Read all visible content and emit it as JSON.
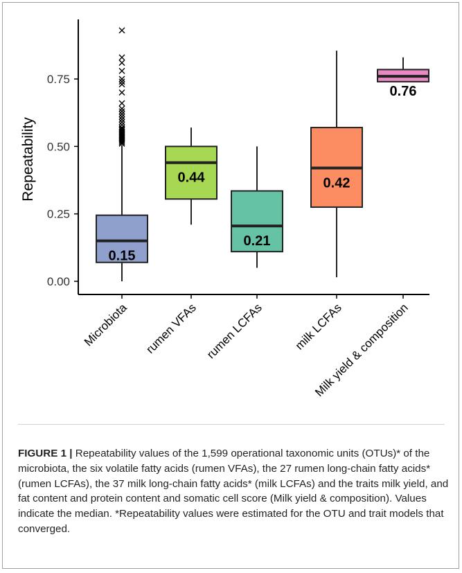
{
  "chart_data": {
    "type": "box",
    "ylabel": "Repeatability",
    "ylim": [
      0.0,
      0.95
    ],
    "yticks": [
      "0.00",
      "0.25",
      "0.50",
      "0.75"
    ],
    "ytick_values": [
      0.0,
      0.25,
      0.5,
      0.75
    ],
    "categories": [
      "Microbiota",
      "rumen VFAs",
      "rumen LCFAs",
      "milk LCFAs",
      "Milk yield & composition"
    ],
    "boxes": [
      {
        "category": "Microbiota",
        "whisker_low": 0.0,
        "q1": 0.07,
        "median": 0.15,
        "q3": 0.245,
        "whisker_high": 0.505,
        "color": "#8ea0cb",
        "label": "0.15",
        "outliers": [
          0.93,
          0.83,
          0.81,
          0.78,
          0.75,
          0.74,
          0.73,
          0.7,
          0.66,
          0.64,
          0.63,
          0.62,
          0.61,
          0.6,
          0.59,
          0.58,
          0.57,
          0.565,
          0.56,
          0.555,
          0.55,
          0.545,
          0.54,
          0.535,
          0.53,
          0.525,
          0.52,
          0.515,
          0.51
        ]
      },
      {
        "category": "rumen VFAs",
        "whisker_low": 0.21,
        "q1": 0.305,
        "median": 0.44,
        "q3": 0.5,
        "whisker_high": 0.57,
        "color": "#a6d853",
        "label": "0.44",
        "outliers": []
      },
      {
        "category": "rumen LCFAs",
        "whisker_low": 0.05,
        "q1": 0.11,
        "median": 0.205,
        "q3": 0.335,
        "whisker_high": 0.5,
        "color": "#66c2a5",
        "label": "0.21",
        "outliers": []
      },
      {
        "category": "milk LCFAs",
        "whisker_low": 0.015,
        "q1": 0.275,
        "median": 0.42,
        "q3": 0.57,
        "whisker_high": 0.855,
        "color": "#fc8d62",
        "label": "0.42",
        "outliers": []
      },
      {
        "category": "Milk yield & composition",
        "whisker_low": 0.74,
        "q1": 0.74,
        "median": 0.76,
        "q3": 0.785,
        "whisker_high": 0.83,
        "color": "#e78ac3",
        "label": "0.76",
        "outliers": []
      }
    ]
  },
  "caption": {
    "label": "FIGURE 1",
    "separator": "|",
    "text": "Repeatability values of the 1,599 operational taxonomic units (OTUs)* of the microbiota, the six volatile fatty acids (rumen VFAs), the 27 rumen long-chain fatty acids* (rumen LCFAs), the 37 milk long-chain fatty acids* (milk LCFAs) and the traits milk yield, and fat content and protein content and somatic cell score (Milk yield & composition). Values indicate the median. *Repeatability values were estimated for the OTU and trait models that converged."
  }
}
